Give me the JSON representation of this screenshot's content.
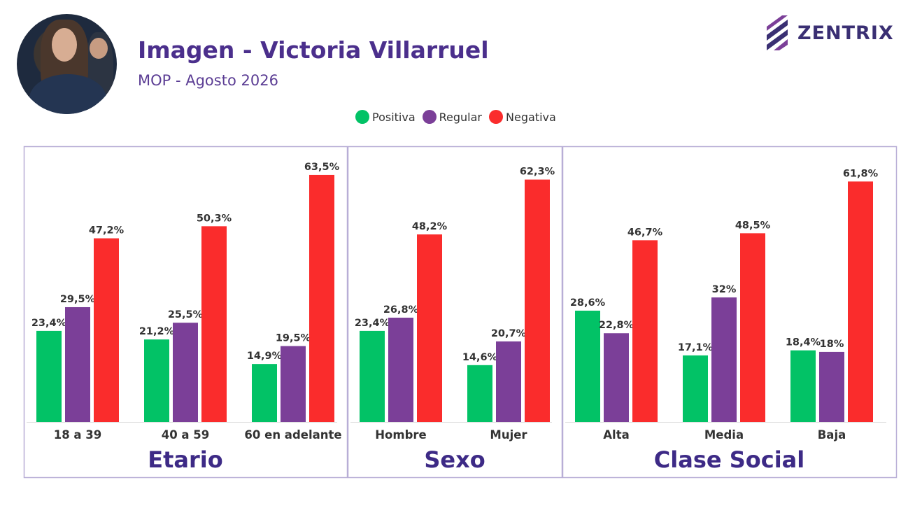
{
  "header": {
    "title": "Imagen - Victoria Villarruel",
    "subtitle": "MOP - Agosto 2026",
    "brand": "ZENTRIX",
    "avatar_icon": "person-photo-icon",
    "brand_icon": "zentrix-logo-icon"
  },
  "colors": {
    "positiva": "#02c266",
    "regular": "#7b3f98",
    "negativa": "#fa2c2c",
    "title": "#4b2f8c",
    "panel_border": "#b8aed6"
  },
  "legend": [
    {
      "label": "Positiva",
      "color": "#02c266"
    },
    {
      "label": "Regular",
      "color": "#7b3f98"
    },
    {
      "label": "Negativa",
      "color": "#fa2c2c"
    }
  ],
  "chart_data": {
    "type": "bar",
    "series_names": [
      "Positiva",
      "Regular",
      "Negativa"
    ],
    "ylim": [
      0,
      70
    ],
    "panels": [
      {
        "title": "Etario",
        "categories": [
          "18 a 39",
          "40 a 59",
          "60 en adelante"
        ],
        "series": [
          {
            "name": "Positiva",
            "values": [
              23.4,
              21.2,
              14.9
            ],
            "labels": [
              "23,4%",
              "21,2%",
              "14,9%"
            ]
          },
          {
            "name": "Regular",
            "values": [
              29.5,
              25.5,
              19.5
            ],
            "labels": [
              "29,5%",
              "25,5%",
              "19,5%"
            ]
          },
          {
            "name": "Negativa",
            "values": [
              47.2,
              50.3,
              63.5
            ],
            "labels": [
              "47,2%",
              "50,3%",
              "63,5%"
            ]
          }
        ]
      },
      {
        "title": "Sexo",
        "categories": [
          "Hombre",
          "Mujer"
        ],
        "series": [
          {
            "name": "Positiva",
            "values": [
              23.4,
              14.6
            ],
            "labels": [
              "23,4%",
              "14,6%"
            ]
          },
          {
            "name": "Regular",
            "values": [
              26.8,
              20.7
            ],
            "labels": [
              "26,8%",
              "20,7%"
            ]
          },
          {
            "name": "Negativa",
            "values": [
              48.2,
              62.3
            ],
            "labels": [
              "48,2%",
              "62,3%"
            ]
          }
        ]
      },
      {
        "title": "Clase Social",
        "categories": [
          "Alta",
          "Media",
          "Baja"
        ],
        "series": [
          {
            "name": "Positiva",
            "values": [
              28.6,
              17.1,
              18.4
            ],
            "labels": [
              "28,6%",
              "17,1%",
              "18,4%"
            ]
          },
          {
            "name": "Regular",
            "values": [
              22.8,
              32,
              18
            ],
            "labels": [
              "22,8%",
              "32%",
              "18%"
            ]
          },
          {
            "name": "Negativa",
            "values": [
              46.7,
              48.5,
              61.8
            ],
            "labels": [
              "46,7%",
              "48,5%",
              "61,8%"
            ]
          }
        ]
      }
    ]
  }
}
